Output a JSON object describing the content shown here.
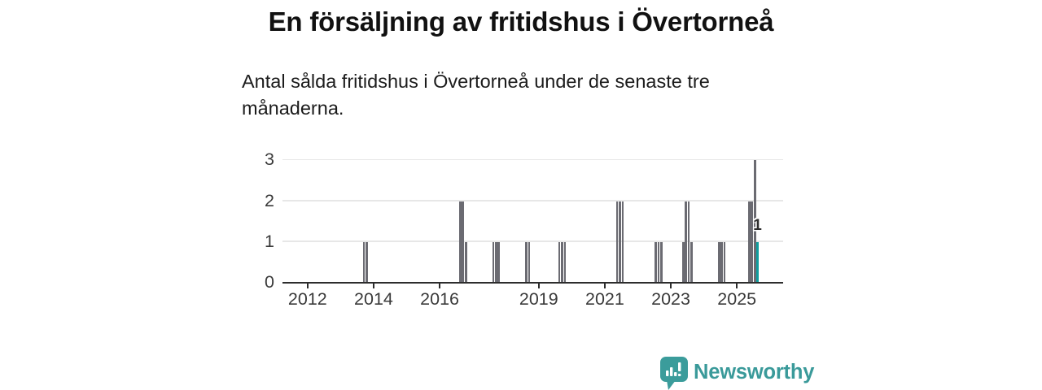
{
  "header": {
    "title": "En försäljning av fritidshus i Övertorneå",
    "subtitle": "Antal sålda fritidshus i Övertorneå under de senaste tre månaderna."
  },
  "branding": {
    "name": "Newsworthy",
    "logo_icon": "speech-bubble-bar-chart",
    "color": "#3a9a9a"
  },
  "chart_data": {
    "type": "bar",
    "title": "En försäljning av fritidshus i Övertorneå",
    "subtitle": "Antal sålda fritidshus i Övertorneå under de senaste tre månaderna.",
    "x": [
      "2013-09",
      "2013-10",
      "2016-08",
      "2016-09",
      "2016-10",
      "2017-08",
      "2017-09",
      "2017-10",
      "2018-08",
      "2018-09",
      "2019-08",
      "2019-09",
      "2019-10",
      "2021-05",
      "2021-06",
      "2021-07",
      "2022-07",
      "2022-08",
      "2022-09",
      "2023-05",
      "2023-06",
      "2023-07",
      "2023-08",
      "2024-06",
      "2024-07",
      "2024-08",
      "2025-05",
      "2025-06",
      "2025-07",
      "2025-08"
    ],
    "values": [
      1,
      1,
      2,
      2,
      1,
      1,
      1,
      1,
      1,
      1,
      1,
      1,
      1,
      2,
      2,
      2,
      1,
      1,
      1,
      1,
      2,
      2,
      1,
      1,
      1,
      1,
      2,
      2,
      3,
      1
    ],
    "highlight": {
      "index": 29,
      "label": "1",
      "color": "#0f9e9e"
    },
    "bar_color": "#6b6b72",
    "grid_color": "#e7e7e7",
    "axis_color": "#2d2d2d",
    "xticks": [
      2012,
      2014,
      2016,
      2019,
      2021,
      2023,
      2025
    ],
    "yticks": [
      0,
      1,
      2,
      3
    ],
    "xlim": [
      2011.24,
      2026.4
    ],
    "ylim": [
      0,
      3
    ],
    "grid": true,
    "legend": false
  }
}
